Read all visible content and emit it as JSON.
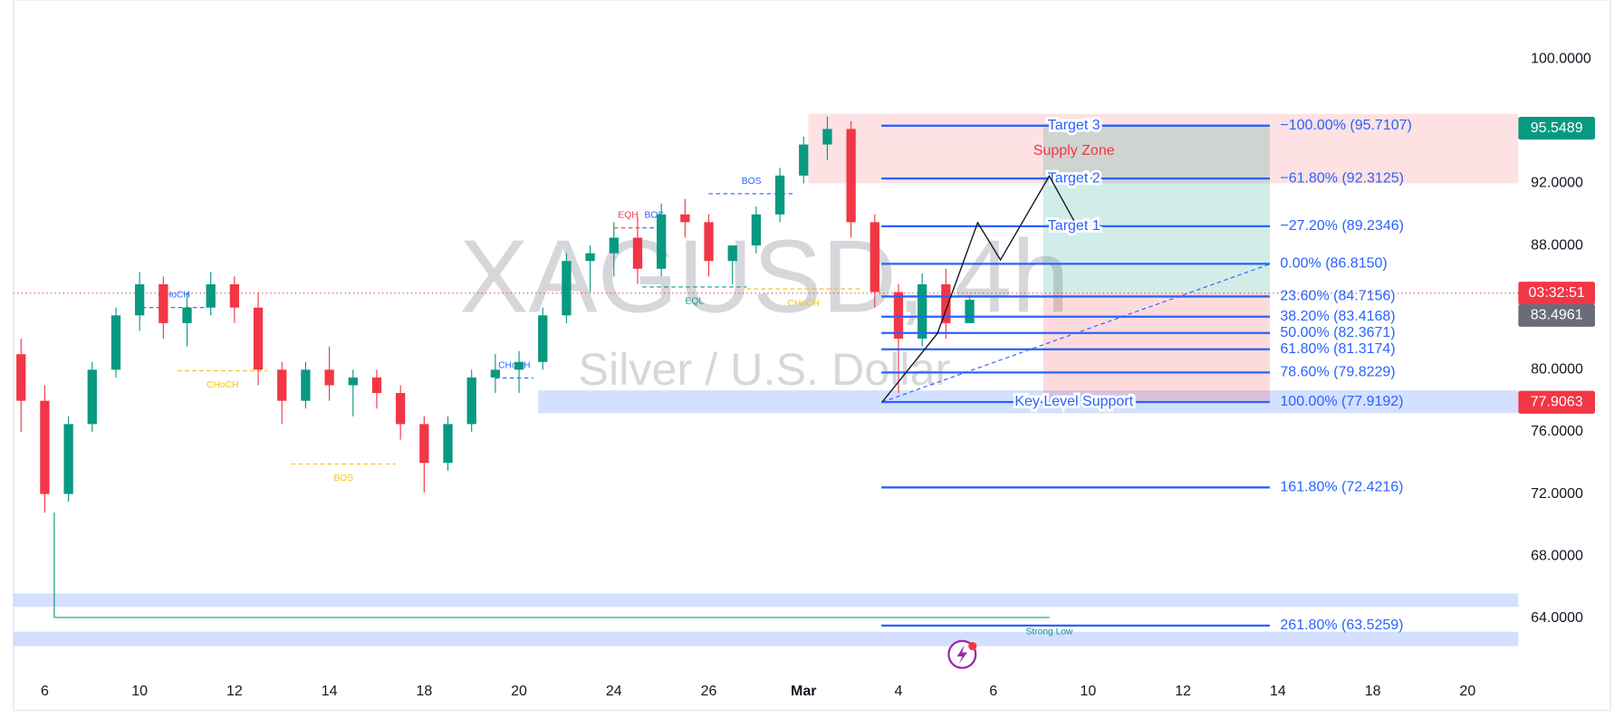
{
  "chart_data": {
    "type": "candlestick",
    "title": "XAGUSD, 4h",
    "subtitle": "Silver / U.S. Dollar",
    "up_color": "#089981",
    "down_color": "#f23645",
    "xlim": [
      -0.66,
      31.07
    ],
    "ylim": [
      60.47,
      103.8
    ],
    "grid": false,
    "xticks": [
      {
        "value": 0,
        "label": "6"
      },
      {
        "value": 2,
        "label": "10"
      },
      {
        "value": 4,
        "label": "12"
      },
      {
        "value": 6,
        "label": "14"
      },
      {
        "value": 8,
        "label": "18"
      },
      {
        "value": 10,
        "label": "20"
      },
      {
        "value": 12,
        "label": "24"
      },
      {
        "value": 14,
        "label": "26"
      },
      {
        "value": 16,
        "label": "Mar"
      },
      {
        "value": 18,
        "label": "4"
      },
      {
        "value": 20,
        "label": "6"
      },
      {
        "value": 22,
        "label": "10"
      },
      {
        "value": 24,
        "label": "12"
      },
      {
        "value": 26,
        "label": "14"
      },
      {
        "value": 28,
        "label": "18"
      },
      {
        "value": 30,
        "label": "20"
      }
    ],
    "yticks": [
      {
        "value": 64,
        "label": "64.0000"
      },
      {
        "value": 68,
        "label": "68.0000"
      },
      {
        "value": 72,
        "label": "72.0000"
      },
      {
        "value": 76,
        "label": "76.0000"
      },
      {
        "value": 80,
        "label": "80.0000"
      },
      {
        "value": 88,
        "label": "88.0000"
      },
      {
        "value": 92,
        "label": "92.0000"
      },
      {
        "value": 100,
        "label": "100.0000"
      }
    ],
    "x": [
      -0.5,
      0,
      0.5,
      1,
      1.5,
      2,
      2.5,
      3,
      3.5,
      4,
      4.5,
      5,
      5.5,
      6,
      6.5,
      7,
      7.5,
      8,
      8.5,
      9,
      9.5,
      10,
      10.5,
      11,
      11.5,
      12,
      12.5,
      13,
      13.5,
      14,
      14.5,
      15,
      15.5,
      16,
      16.5,
      17,
      17.5,
      18,
      18.5,
      19,
      19.5
    ],
    "open": [
      81,
      78,
      72,
      76.5,
      80,
      83.5,
      85.5,
      83,
      84,
      85.5,
      84,
      80,
      78,
      80,
      79,
      79.5,
      78.5,
      76.5,
      74,
      76.5,
      79.5,
      80,
      80.5,
      83.5,
      87,
      87.5,
      88.5,
      86.5,
      90,
      89.5,
      87,
      88,
      90,
      92.5,
      94.5,
      95.5,
      89.5,
      85,
      82,
      85.5,
      83
    ],
    "high": [
      82,
      79,
      77,
      80.5,
      84,
      86.3,
      86,
      85,
      86.3,
      86,
      85,
      80.5,
      80.5,
      81.5,
      80,
      80,
      79,
      77,
      77,
      80,
      81,
      81.2,
      84,
      87.5,
      88,
      89.5,
      89.8,
      90.7,
      91,
      90,
      88,
      90.5,
      93,
      95,
      96.3,
      96,
      90,
      85.5,
      86.2,
      86.5,
      84.8
    ],
    "low": [
      76,
      70.8,
      71.5,
      76,
      79.5,
      82.5,
      82,
      81.5,
      83.5,
      83,
      79,
      76.5,
      77.5,
      78,
      77,
      77.5,
      75.5,
      72.1,
      73.5,
      76,
      78.5,
      78.5,
      80,
      83,
      85,
      86,
      85.5,
      86,
      88.5,
      86,
      85.5,
      87.5,
      89.5,
      92,
      93.5,
      88.5,
      84,
      78.5,
      81.5,
      82,
      83
    ],
    "close": [
      78,
      72,
      76.5,
      80,
      83.5,
      85.5,
      83,
      84,
      85.5,
      84,
      80,
      78,
      80,
      79,
      79.5,
      78.5,
      76.5,
      74,
      76.5,
      79.5,
      80,
      80.5,
      83.5,
      87,
      87.5,
      88.5,
      86.5,
      90,
      89.5,
      87,
      88,
      90,
      92.5,
      94.5,
      95.5,
      89.5,
      85,
      82,
      85.5,
      83,
      84.5
    ],
    "zones": [
      {
        "x": [
          16.1,
          31.07
        ],
        "y": [
          92.0,
          96.47
        ],
        "color": "rgba(242,54,69,0.15)",
        "label": "Supply Zone",
        "label_x": 21.7,
        "label_y": 94.07
      },
      {
        "x": [
          10.4,
          31.07
        ],
        "y": [
          77.2,
          78.67
        ],
        "color": "rgba(41,98,255,0.2)"
      },
      {
        "x": [
          -0.66,
          31.07
        ],
        "y": [
          64.73,
          65.6
        ],
        "color": "rgba(41,98,255,0.2)"
      },
      {
        "x": [
          -0.66,
          31.07
        ],
        "y": [
          62.2,
          63.13
        ],
        "color": "rgba(41,98,255,0.2)"
      }
    ],
    "position": {
      "x": [
        21.05,
        25.83
      ],
      "target": 95.7107,
      "entry": 84.9,
      "stop": 77.9192
    },
    "fib": {
      "x": [
        17.64,
        25.83
      ],
      "name_x": 21.7,
      "color": "#2962ff",
      "levels": [
        {
          "value": 95.7107,
          "label": "−100.00% (95.7107)",
          "name": "Target 3"
        },
        {
          "value": 92.3125,
          "label": "−61.80% (92.3125)",
          "name": "Target 2"
        },
        {
          "value": 89.2346,
          "label": "−27.20% (89.2346)",
          "name": "Target 1"
        },
        {
          "value": 86.815,
          "label": "0.00% (86.8150)"
        },
        {
          "value": 84.7156,
          "label": "23.60% (84.7156)"
        },
        {
          "value": 83.4168,
          "label": "38.20% (83.4168)"
        },
        {
          "value": 82.3671,
          "label": "50.00% (82.3671)"
        },
        {
          "value": 81.3174,
          "label": "61.80% (81.3174)"
        },
        {
          "value": 79.8229,
          "label": "78.60% (79.8229)"
        },
        {
          "value": 77.9192,
          "label": "100.00% (77.9192)",
          "name": "Key Level Support"
        },
        {
          "value": 72.4216,
          "label": "161.80% (72.4216)"
        },
        {
          "value": 63.5259,
          "label": "261.80% (63.5259)"
        }
      ]
    },
    "projection": {
      "x": [
        17.66,
        18.82,
        19.67,
        20.15,
        21.18,
        21.7
      ],
      "y": [
        77.93,
        82.33,
        89.47,
        87.07,
        92.47,
        89.6
      ]
    },
    "trend_line": {
      "x": [
        17.66,
        25.83
      ],
      "y": [
        77.92,
        86.8
      ]
    },
    "strong_low": {
      "label": "Strong Low",
      "value": 64.05,
      "x": [
        0.2,
        21.18
      ],
      "from": 70.8,
      "color": "#089981"
    },
    "annotations": [
      {
        "text": "CHoCH",
        "x": [
          2.05,
          3.4
        ],
        "y": 84.0,
        "color": "#2962ff",
        "below": false
      },
      {
        "text": "CHoCH",
        "x": [
          2.8,
          4.7
        ],
        "y": 79.93,
        "color": "#f0c419",
        "below": true
      },
      {
        "text": "BOS",
        "x": [
          5.2,
          7.4
        ],
        "y": 73.93,
        "color": "#f0c419",
        "below": true
      },
      {
        "text": "CHoCH",
        "x": [
          9.5,
          10.3
        ],
        "y": 79.47,
        "color": "#2962ff",
        "below": false
      },
      {
        "text": "EQH",
        "x": [
          12.0,
          12.6
        ],
        "y": 89.13,
        "color": "#f23645",
        "below": false
      },
      {
        "text": "BOS",
        "x": [
          12.6,
          13.1
        ],
        "y": 89.13,
        "color": "#2962ff",
        "below": false
      },
      {
        "text": "BOS",
        "x": [
          14.0,
          15.8
        ],
        "y": 91.33,
        "color": "#2962ff",
        "below": false
      },
      {
        "text": "EQL",
        "x": [
          12.6,
          14.8
        ],
        "y": 85.33,
        "color": "#089981",
        "below": true
      },
      {
        "text": "CHoCH",
        "x": [
          14.8,
          17.2
        ],
        "y": 85.2,
        "color": "#f0c419",
        "below": true
      }
    ],
    "price_line": {
      "value": 84.93,
      "label": "03:32:51",
      "color": "#f23645"
    },
    "price_badges": [
      {
        "value": 95.5489,
        "label": "95.5489",
        "color": "#089981"
      },
      {
        "value": 83.4961,
        "label": "83.4961",
        "color": "#6a6d78"
      },
      {
        "value": 77.9063,
        "label": "77.9063",
        "color": "#f23645"
      }
    ]
  }
}
